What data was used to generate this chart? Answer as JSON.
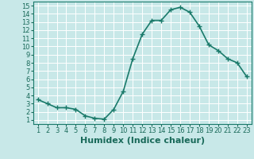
{
  "x": [
    1,
    2,
    3,
    4,
    5,
    6,
    7,
    8,
    9,
    10,
    11,
    12,
    13,
    14,
    15,
    16,
    17,
    18,
    19,
    20,
    21,
    22,
    23
  ],
  "y": [
    3.5,
    3.0,
    2.5,
    2.5,
    2.3,
    1.5,
    1.2,
    1.1,
    2.3,
    4.5,
    8.5,
    11.5,
    13.2,
    13.2,
    14.5,
    14.8,
    14.2,
    12.5,
    10.2,
    9.5,
    8.5,
    8.0,
    6.3
  ],
  "line_color": "#1a7a6a",
  "marker": "+",
  "marker_size": 4,
  "marker_color": "#1a7a6a",
  "bg_color": "#c8e8e8",
  "grid_color": "#b0d8d8",
  "xlabel": "Humidex (Indice chaleur)",
  "xlim": [
    0.5,
    23.5
  ],
  "ylim": [
    0.5,
    15.5
  ],
  "yticks": [
    1,
    2,
    3,
    4,
    5,
    6,
    7,
    8,
    9,
    10,
    11,
    12,
    13,
    14,
    15
  ],
  "xticks": [
    1,
    2,
    3,
    4,
    5,
    6,
    7,
    8,
    9,
    10,
    11,
    12,
    13,
    14,
    15,
    16,
    17,
    18,
    19,
    20,
    21,
    22,
    23
  ],
  "tick_label_color": "#1a6a5a",
  "axis_color": "#1a7a6a",
  "xlabel_color": "#1a6a5a",
  "xlabel_fontsize": 8,
  "tick_fontsize": 6,
  "linewidth": 1.2
}
